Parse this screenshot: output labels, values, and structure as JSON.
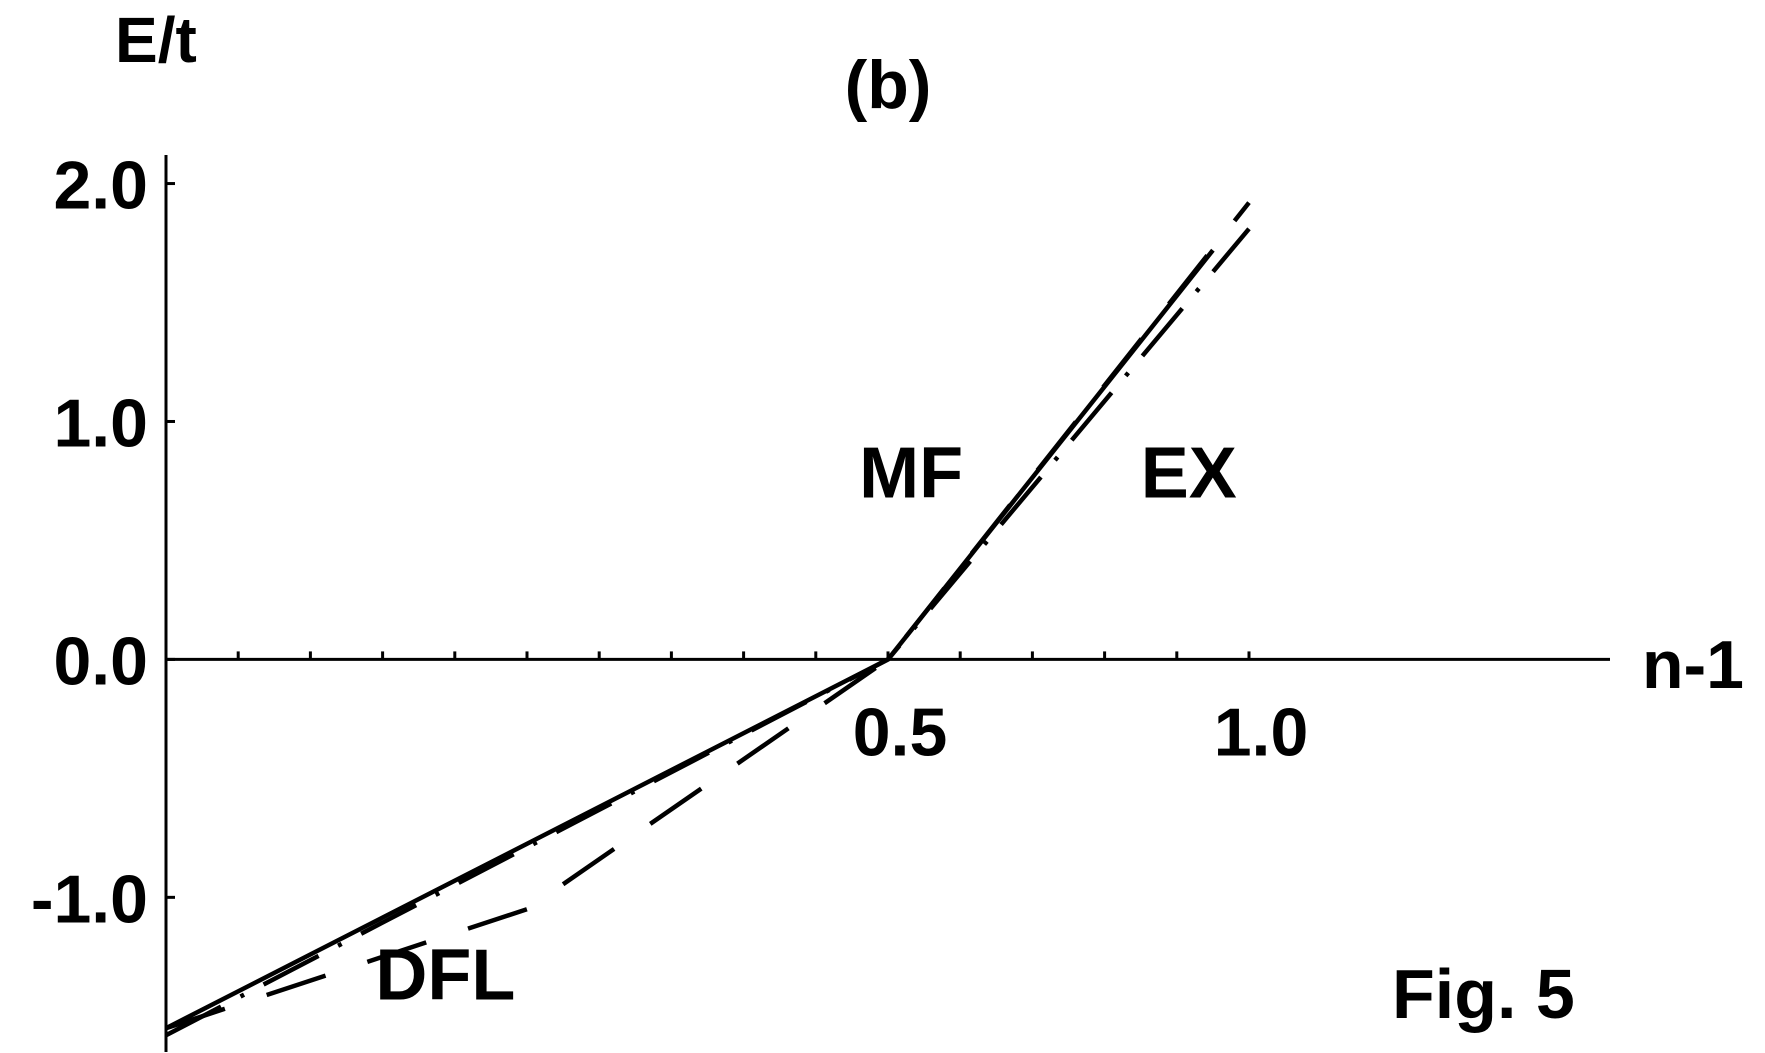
{
  "chart_data": {
    "type": "line",
    "panel_label": "(b)",
    "ylabel": "E/t",
    "xlabel": "n-1",
    "figure_label": "Fig. 5",
    "xlim": [
      -0.5,
      1.5
    ],
    "ylim": [
      -1.65,
      2.12
    ],
    "x_tick_values": [
      -0.4,
      -0.3,
      -0.2,
      -0.1,
      0.0,
      0.1,
      0.2,
      0.3,
      0.4,
      0.5,
      0.6,
      0.7,
      0.8,
      0.9,
      1.0
    ],
    "x_tick_labels": [
      {
        "value": 0.5,
        "text": "0.5"
      },
      {
        "value": 1.0,
        "text": "1.0"
      }
    ],
    "y_tick_labels": [
      {
        "value": 2.0,
        "text": "2.0"
      },
      {
        "value": 1.0,
        "text": "1.0"
      },
      {
        "value": 0.0,
        "text": "0.0"
      },
      {
        "value": -1.0,
        "text": "-1.0"
      }
    ],
    "series": [
      {
        "name": "EX",
        "style": "solid",
        "label_at": [
          0.85,
          0.68
        ],
        "x": [
          -0.5,
          0.5,
          0.95
        ],
        "y": [
          -1.55,
          0.0,
          1.72
        ]
      },
      {
        "name": "MF",
        "style": "dashed",
        "label_at": [
          0.46,
          0.68
        ],
        "x": [
          -0.5,
          0.0,
          0.5,
          1.0
        ],
        "y": [
          -1.55,
          -1.05,
          0.0,
          1.92
        ]
      },
      {
        "name": "DFL",
        "style": "dash-dot",
        "label_at": [
          -0.21,
          -1.43
        ],
        "x": [
          -0.5,
          0.5,
          1.0
        ],
        "y": [
          -1.58,
          0.0,
          1.81
        ]
      }
    ]
  }
}
